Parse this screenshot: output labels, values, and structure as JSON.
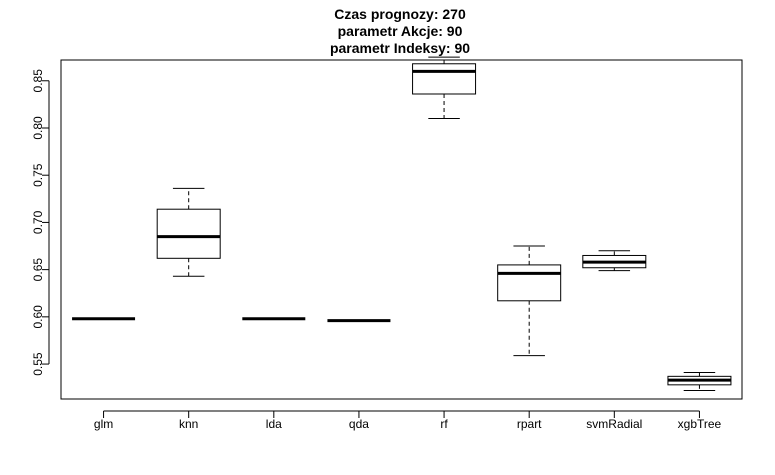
{
  "chart_data": {
    "type": "boxplot",
    "title_lines": [
      "Czas prognozy: 270",
      "parametr Akcje: 90",
      "parametr Indeksy: 90"
    ],
    "xlabel": "",
    "ylabel": "",
    "categories": [
      "glm",
      "knn",
      "lda",
      "qda",
      "rf",
      "rpart",
      "svmRadial",
      "xgbTree"
    ],
    "yticks": [
      0.55,
      0.6,
      0.65,
      0.7,
      0.75,
      0.8,
      0.85
    ],
    "ytick_labels": [
      "0.55",
      "0.60",
      "0.65",
      "0.70",
      "0.75",
      "0.80",
      "0.85"
    ],
    "ylim": [
      0.513,
      0.872
    ],
    "grid": false,
    "boxes": [
      {
        "category": "glm",
        "min": 0.598,
        "q1": 0.598,
        "median": 0.598,
        "q3": 0.598,
        "max": 0.598
      },
      {
        "category": "knn",
        "min": 0.643,
        "q1": 0.662,
        "median": 0.685,
        "q3": 0.714,
        "max": 0.736
      },
      {
        "category": "lda",
        "min": 0.598,
        "q1": 0.598,
        "median": 0.598,
        "q3": 0.598,
        "max": 0.598
      },
      {
        "category": "qda",
        "min": 0.596,
        "q1": 0.596,
        "median": 0.596,
        "q3": 0.596,
        "max": 0.596
      },
      {
        "category": "rf",
        "min": 0.81,
        "q1": 0.836,
        "median": 0.86,
        "q3": 0.868,
        "max": 0.875
      },
      {
        "category": "rpart",
        "min": 0.559,
        "q1": 0.617,
        "median": 0.646,
        "q3": 0.655,
        "max": 0.675
      },
      {
        "category": "svmRadial",
        "min": 0.649,
        "q1": 0.652,
        "median": 0.658,
        "q3": 0.665,
        "max": 0.67
      },
      {
        "category": "xgbTree",
        "min": 0.522,
        "q1": 0.528,
        "median": 0.533,
        "q3": 0.537,
        "max": 0.541
      }
    ],
    "colors": {
      "box": "#000000",
      "background": "#ffffff"
    }
  }
}
